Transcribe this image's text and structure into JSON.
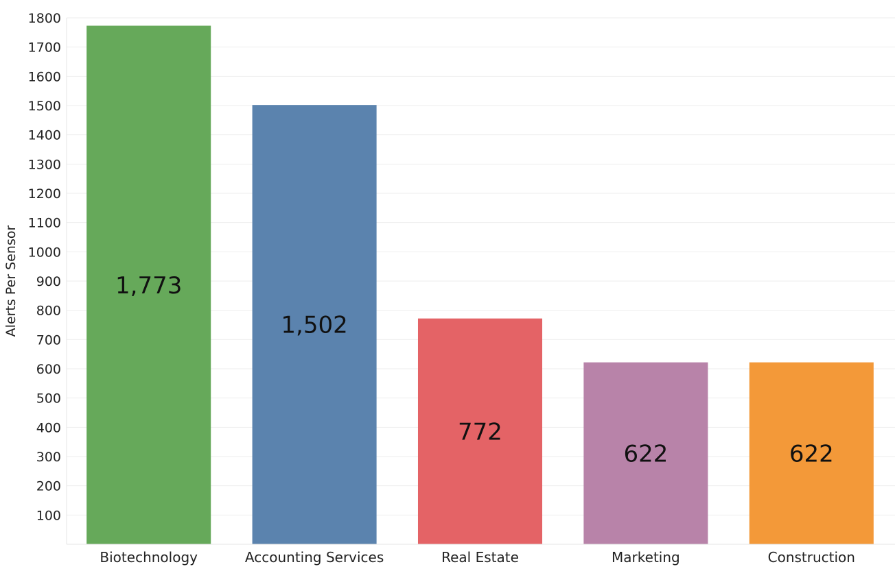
{
  "chart_data": {
    "type": "bar",
    "title": "",
    "xlabel": "",
    "ylabel": "Alerts Per Sensor",
    "ylim": [
      0,
      1800
    ],
    "yticks": [
      100,
      200,
      300,
      400,
      500,
      600,
      700,
      800,
      900,
      1000,
      1100,
      1200,
      1300,
      1400,
      1500,
      1600,
      1700,
      1800
    ],
    "grid": true,
    "categories": [
      "Biotechnology",
      "Accounting Services",
      "Real Estate",
      "Marketing",
      "Construction"
    ],
    "values": [
      1773,
      1502,
      772,
      622,
      622
    ],
    "data_labels": [
      "1,773",
      "1,502",
      "772",
      "622",
      "622"
    ],
    "colors": [
      "#66a95a",
      "#5b83ae",
      "#e46366",
      "#b883a9",
      "#f39939"
    ]
  }
}
